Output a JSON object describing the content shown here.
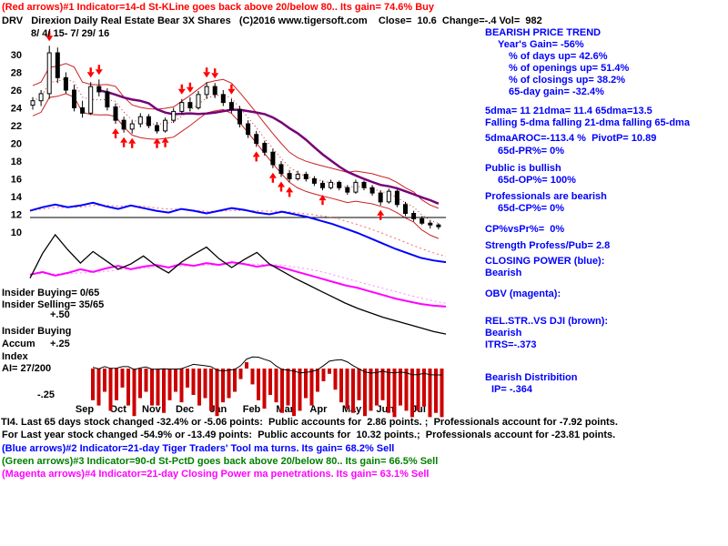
{
  "header": {
    "signal_line": "(Red arrows)#1 Indicator=14-d St-KLine goes back above 20/below 80.. Its gain= 74.6% Buy",
    "title_line": "DRV   Direxion Daily Real Estate Bear 3X Shares   (C)2016 www.tigersoft.com    Close=  10.6  Change=-.4 Vol=  982",
    "date_range": "8/ 4/ 15- 7/ 29/ 16"
  },
  "left_labels": {
    "insider_buying": "Insider Buying= 0/65",
    "insider_selling": "Insider Selling= 35/65",
    "scale_plus_50": "+.50",
    "accum_title_1": "Insider Buying",
    "accum_title_2": "Accum",
    "scale_plus_25": "+.25",
    "accum_title_3": "Index",
    "ai_value": "AI= 27/200",
    "scale_minus_25": "-.25"
  },
  "right_panel": {
    "lines": [
      "BEARISH PRICE TREND",
      "Year's Gain= -56%",
      "% of days up= 42.6%",
      "% of openings up= 51.4%",
      "% of closings up= 38.2%",
      "65-day gain= -32.4%",
      "5dma= 11 21dma= 11.4 65dma=13.5",
      "Falling 5-dma falling 21-dma falling 65-dma",
      "5dmaAROC=-113.4 %  PivotP= 10.89",
      "65d-PR%= 0%",
      "Public is bullish",
      "65d-OP%= 100%",
      "Professionals are bearish",
      "65d-CP%= 0%",
      "CP%vsPr%=  0%",
      "Strength Profess/Pub= 2.8",
      "CLOSING POWER (blue):",
      "Bearish",
      "OBV (magenta):",
      "REL.STR..VS DJI (brown):",
      "Bearish",
      "ITRS=-.373",
      "Bearish Distribition",
      "IP= -.364"
    ]
  },
  "footer": {
    "lines": [
      "TI4. Last 65 days stock changed -32.4% or -5.06 points:  Public accounts for  2.86 points. ;  Professionals account for -7.92 points.",
      "For Last year stock changed -54.9% or -13.49 points:  Public accounts for  10.32 points.;  Professionals account for -23.81 points.",
      "(Blue arrows)#2 Indicator=21-day Tiger Traders' Tool ma turns. Its gain= 68.2% Sell",
      "(Green arrows)#3 Indicator=90-d St-PctD goes back above 20/below 80.. Its gain= 66.5% Sell",
      "(Magenta arrows)#4 Indicator=21-day Closing Power ma penetrations. Its gain= 63.1% Sell"
    ]
  },
  "chart_data": {
    "type": "candlestick",
    "symbol": "DRV",
    "title": "Direxion Daily Real Estate Bear 3X Shares",
    "period": "8/4/15 - 7/29/16",
    "close": 10.6,
    "change": -0.4,
    "volume": 982,
    "y_axis_ticks": [
      30,
      28,
      26,
      24,
      22,
      20,
      18,
      16,
      14,
      12,
      10
    ],
    "x_axis_months": [
      "Sep",
      "Oct",
      "Nov",
      "Dec",
      "Jan",
      "Feb",
      "Mar",
      "Apr",
      "May",
      "Jun",
      "Jul"
    ],
    "candles_ohlc": [
      [
        24.3,
        25.2,
        23.8,
        24.8
      ],
      [
        24.8,
        26.0,
        24.2,
        25.6
      ],
      [
        25.6,
        31.0,
        25.0,
        30.2
      ],
      [
        30.2,
        30.8,
        26.8,
        27.4
      ],
      [
        27.4,
        28.0,
        25.6,
        26.0
      ],
      [
        26.0,
        26.6,
        23.6,
        24.0
      ],
      [
        24.0,
        24.8,
        22.9,
        23.4
      ],
      [
        23.4,
        26.9,
        23.2,
        26.4
      ],
      [
        26.4,
        27.2,
        25.3,
        25.8
      ],
      [
        25.8,
        26.2,
        23.7,
        24.1
      ],
      [
        24.1,
        24.5,
        22.2,
        22.6
      ],
      [
        22.6,
        23.0,
        21.2,
        21.6
      ],
      [
        21.6,
        22.6,
        21.1,
        22.2
      ],
      [
        22.2,
        23.4,
        21.8,
        23.0
      ],
      [
        23.0,
        23.3,
        21.7,
        22.0
      ],
      [
        22.0,
        22.4,
        21.1,
        21.4
      ],
      [
        21.4,
        22.9,
        21.2,
        22.6
      ],
      [
        22.6,
        24.0,
        22.3,
        23.6
      ],
      [
        23.6,
        25.0,
        23.2,
        24.6
      ],
      [
        24.6,
        25.2,
        23.6,
        24.0
      ],
      [
        24.0,
        25.9,
        23.8,
        25.5
      ],
      [
        25.5,
        26.9,
        25.0,
        26.4
      ],
      [
        26.4,
        26.8,
        25.1,
        25.5
      ],
      [
        25.5,
        26.0,
        24.2,
        24.6
      ],
      [
        24.6,
        25.0,
        23.4,
        23.8
      ],
      [
        23.8,
        24.2,
        21.8,
        22.2
      ],
      [
        22.2,
        22.6,
        20.6,
        21.0
      ],
      [
        21.0,
        21.4,
        19.6,
        20.0
      ],
      [
        20.0,
        20.3,
        18.6,
        19.0
      ],
      [
        19.0,
        19.4,
        17.2,
        17.6
      ],
      [
        17.6,
        18.0,
        16.2,
        16.6
      ],
      [
        16.6,
        17.0,
        15.6,
        16.0
      ],
      [
        16.0,
        16.9,
        15.8,
        16.5
      ],
      [
        16.5,
        16.8,
        15.7,
        16.0
      ],
      [
        16.0,
        16.3,
        15.2,
        15.5
      ],
      [
        15.5,
        15.8,
        14.7,
        15.0
      ],
      [
        15.0,
        15.9,
        14.8,
        15.6
      ],
      [
        15.6,
        15.8,
        14.7,
        15.0
      ],
      [
        15.0,
        15.3,
        14.2,
        14.5
      ],
      [
        14.5,
        15.9,
        14.3,
        15.6
      ],
      [
        15.6,
        15.8,
        14.7,
        15.0
      ],
      [
        15.0,
        15.3,
        14.1,
        14.4
      ],
      [
        14.4,
        14.7,
        13.0,
        13.4
      ],
      [
        13.4,
        14.9,
        13.2,
        14.6
      ],
      [
        14.6,
        14.8,
        12.8,
        13.1
      ],
      [
        13.1,
        13.4,
        11.8,
        12.1
      ],
      [
        12.1,
        12.4,
        11.2,
        11.5
      ],
      [
        11.5,
        11.8,
        10.8,
        11.0
      ],
      [
        11.0,
        11.3,
        10.4,
        10.8
      ],
      [
        10.8,
        11.0,
        10.3,
        10.6
      ]
    ],
    "series": {
      "closing_power": [
        12.4,
        12.8,
        13.1,
        12.8,
        13.0,
        13.3,
        12.9,
        12.6,
        13.0,
        12.7,
        12.4,
        12.2,
        12.6,
        12.4,
        12.1,
        12.4,
        12.7,
        12.5,
        12.2,
        12.0,
        12.3,
        12.0,
        11.7,
        11.3,
        10.9,
        10.4,
        9.9,
        9.3,
        8.7,
        8.1,
        7.6,
        7.1,
        6.8,
        6.6
      ],
      "obv": [
        5.2,
        5.5,
        5.1,
        5.4,
        5.8,
        5.5,
        5.9,
        6.2,
        5.8,
        6.1,
        6.3,
        6.0,
        6.4,
        6.2,
        6.5,
        6.3,
        6.6,
        6.4,
        6.1,
        6.3,
        6.0,
        5.6,
        5.2,
        4.8,
        4.4,
        4.0,
        3.7,
        3.3,
        2.9,
        2.5,
        2.2,
        1.9,
        1.7,
        1.6
      ],
      "rel_strength": [
        4.8,
        7.6,
        9.7,
        8.0,
        6.5,
        7.8,
        6.8,
        5.8,
        6.4,
        7.3,
        6.2,
        5.4,
        6.6,
        7.5,
        8.3,
        7.0,
        6.0,
        6.9,
        7.7,
        6.4,
        5.6,
        4.8,
        4.1,
        3.4,
        2.7,
        2.0,
        1.4,
        0.9,
        0.4,
        0.0,
        -0.4,
        -0.8,
        -1.2,
        -1.5
      ]
    },
    "accum_index_bars": [
      -0.3,
      -0.35,
      -0.22,
      -0.4,
      -0.3,
      -0.18,
      -0.35,
      -0.45,
      -0.28,
      -0.22,
      -0.35,
      -0.35,
      -0.42,
      -0.3,
      -0.22,
      -0.32,
      -0.18,
      -0.25,
      -0.35,
      -0.28,
      -0.4,
      -0.45,
      -0.32,
      -0.28,
      -0.22,
      -0.1,
      0.06,
      -0.15,
      -0.3,
      -0.38,
      -0.25,
      -0.32,
      -0.42,
      -0.35,
      -0.45,
      -0.4,
      -0.28,
      -0.35,
      -0.22,
      -0.12,
      -0.05,
      -0.2,
      -0.32,
      -0.38,
      -0.42,
      -0.3,
      -0.45,
      -0.4,
      -0.35,
      -0.3,
      -0.42,
      -0.46,
      -0.35,
      -0.4,
      -0.46,
      -0.4,
      -0.36,
      -0.46,
      -0.42,
      -0.46
    ],
    "signal_arrows": {
      "down_bar_index": [
        2,
        7,
        8,
        18,
        19,
        21,
        22,
        24
      ],
      "up_bar_index": [
        10,
        11,
        12,
        15,
        16,
        27,
        29,
        30,
        31,
        35,
        42
      ]
    },
    "colors": {
      "closing_power": "#0000ff",
      "obv": "#ff00ff",
      "rel_strength": "#000000",
      "ma65": "#770077",
      "bands": "#cc2222",
      "accum_bars": "#cc0000",
      "arrows": "#ff0000",
      "signal_text": "#ff0000",
      "panel_text": "#0000ff",
      "green_text": "#008000"
    }
  }
}
